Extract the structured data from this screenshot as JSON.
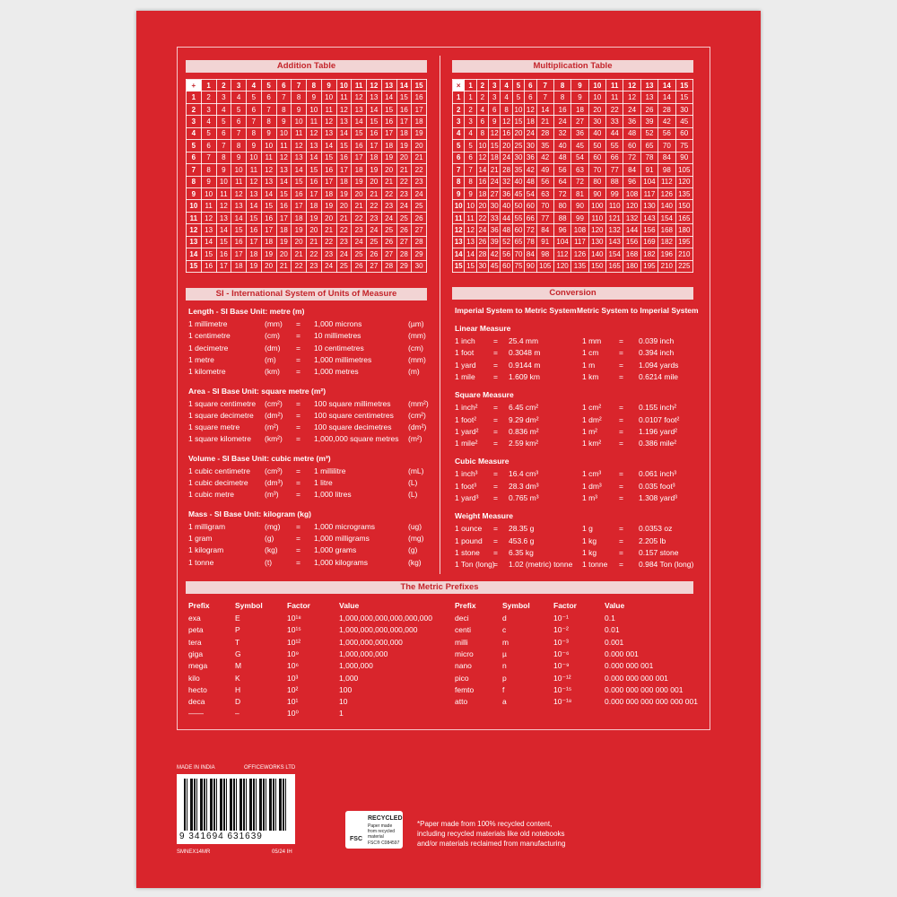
{
  "addition_table": {
    "title": "Addition Table",
    "rows": [
      [
        "+",
        1,
        2,
        3,
        4,
        5,
        6,
        7,
        8,
        9,
        10,
        11,
        12,
        13,
        14,
        15
      ],
      [
        1,
        2,
        3,
        4,
        5,
        6,
        7,
        8,
        9,
        10,
        11,
        12,
        13,
        14,
        15,
        16
      ],
      [
        2,
        3,
        4,
        5,
        6,
        7,
        8,
        9,
        10,
        11,
        12,
        13,
        14,
        15,
        16,
        17
      ],
      [
        3,
        4,
        5,
        6,
        7,
        8,
        9,
        10,
        11,
        12,
        13,
        14,
        15,
        16,
        17,
        18
      ],
      [
        4,
        5,
        6,
        7,
        8,
        9,
        10,
        11,
        12,
        13,
        14,
        15,
        16,
        17,
        18,
        19
      ],
      [
        5,
        6,
        7,
        8,
        9,
        10,
        11,
        12,
        13,
        14,
        15,
        16,
        17,
        18,
        19,
        20
      ],
      [
        6,
        7,
        8,
        9,
        10,
        11,
        12,
        13,
        14,
        15,
        16,
        17,
        18,
        19,
        20,
        21
      ],
      [
        7,
        8,
        9,
        10,
        11,
        12,
        13,
        14,
        15,
        16,
        17,
        18,
        19,
        20,
        21,
        22
      ],
      [
        8,
        9,
        10,
        11,
        12,
        13,
        14,
        15,
        16,
        17,
        18,
        19,
        20,
        21,
        22,
        23
      ],
      [
        9,
        10,
        11,
        12,
        13,
        14,
        15,
        16,
        17,
        18,
        19,
        20,
        21,
        22,
        23,
        24
      ],
      [
        10,
        11,
        12,
        13,
        14,
        15,
        16,
        17,
        18,
        19,
        20,
        21,
        22,
        23,
        24,
        25
      ],
      [
        11,
        12,
        13,
        14,
        15,
        16,
        17,
        18,
        19,
        20,
        21,
        22,
        23,
        24,
        25,
        26
      ],
      [
        12,
        13,
        14,
        15,
        16,
        17,
        18,
        19,
        20,
        21,
        22,
        23,
        24,
        25,
        26,
        27
      ],
      [
        13,
        14,
        15,
        16,
        17,
        18,
        19,
        20,
        21,
        22,
        23,
        24,
        25,
        26,
        27,
        28
      ],
      [
        14,
        15,
        16,
        17,
        18,
        19,
        20,
        21,
        22,
        23,
        24,
        25,
        26,
        27,
        28,
        29
      ],
      [
        15,
        16,
        17,
        18,
        19,
        20,
        21,
        22,
        23,
        24,
        25,
        26,
        27,
        28,
        29,
        30
      ]
    ]
  },
  "multiplication_table": {
    "title": "Multiplication Table",
    "rows": [
      [
        "×",
        1,
        2,
        3,
        4,
        5,
        6,
        7,
        8,
        9,
        10,
        11,
        12,
        13,
        14,
        15
      ],
      [
        1,
        1,
        2,
        3,
        4,
        5,
        6,
        7,
        8,
        9,
        10,
        11,
        12,
        13,
        14,
        15
      ],
      [
        2,
        2,
        4,
        6,
        8,
        10,
        12,
        14,
        16,
        18,
        20,
        22,
        24,
        26,
        28,
        30
      ],
      [
        3,
        3,
        6,
        9,
        12,
        15,
        18,
        21,
        24,
        27,
        30,
        33,
        36,
        39,
        42,
        45
      ],
      [
        4,
        4,
        8,
        12,
        16,
        20,
        24,
        28,
        32,
        36,
        40,
        44,
        48,
        52,
        56,
        60
      ],
      [
        5,
        5,
        10,
        15,
        20,
        25,
        30,
        35,
        40,
        45,
        50,
        55,
        60,
        65,
        70,
        75
      ],
      [
        6,
        6,
        12,
        18,
        24,
        30,
        36,
        42,
        48,
        54,
        60,
        66,
        72,
        78,
        84,
        90
      ],
      [
        7,
        7,
        14,
        21,
        28,
        35,
        42,
        49,
        56,
        63,
        70,
        77,
        84,
        91,
        98,
        105
      ],
      [
        8,
        8,
        16,
        24,
        32,
        40,
        48,
        56,
        64,
        72,
        80,
        88,
        96,
        104,
        112,
        120
      ],
      [
        9,
        9,
        18,
        27,
        36,
        45,
        54,
        63,
        72,
        81,
        90,
        99,
        108,
        117,
        126,
        135
      ],
      [
        10,
        10,
        20,
        30,
        40,
        50,
        60,
        70,
        80,
        90,
        100,
        110,
        120,
        130,
        140,
        150
      ],
      [
        11,
        11,
        22,
        33,
        44,
        55,
        66,
        77,
        88,
        99,
        110,
        121,
        132,
        143,
        154,
        165
      ],
      [
        12,
        12,
        24,
        36,
        48,
        60,
        72,
        84,
        96,
        108,
        120,
        132,
        144,
        156,
        168,
        180
      ],
      [
        13,
        13,
        26,
        39,
        52,
        65,
        78,
        91,
        104,
        117,
        130,
        143,
        156,
        169,
        182,
        195
      ],
      [
        14,
        14,
        28,
        42,
        56,
        70,
        84,
        98,
        112,
        126,
        140,
        154,
        168,
        182,
        196,
        210
      ],
      [
        15,
        15,
        30,
        45,
        60,
        75,
        90,
        105,
        120,
        135,
        150,
        165,
        180,
        195,
        210,
        225
      ]
    ]
  },
  "si": {
    "title": "SI - International System of Units of Measure",
    "equals": "=",
    "groups": [
      {
        "heading": "Length - SI Base Unit: metre (m)",
        "rows": [
          [
            "1 millimetre",
            "(mm)",
            "1,000 microns",
            "(µm)"
          ],
          [
            "1 centimetre",
            "(cm)",
            "10 millimetres",
            "(mm)"
          ],
          [
            "1 decimetre",
            "(dm)",
            "10 centimetres",
            "(cm)"
          ],
          [
            "1 metre",
            "(m)",
            "1,000 millimetres",
            "(mm)"
          ],
          [
            "1 kilometre",
            "(km)",
            "1,000 metres",
            "(m)"
          ]
        ]
      },
      {
        "heading": "Area - SI Base Unit: square metre (m²)",
        "rows": [
          [
            "1 square centimetre",
            "(cm²)",
            "100 square millimetres",
            "(mm²)"
          ],
          [
            "1 square decimetre",
            "(dm²)",
            "100 square centimetres",
            "(cm²)"
          ],
          [
            "1 square metre",
            "(m²)",
            "100 square decimetres",
            "(dm²)"
          ],
          [
            "1 square kilometre",
            "(km²)",
            "1,000,000 square metres",
            "(m²)"
          ]
        ]
      },
      {
        "heading": "Volume - SI Base Unit: cubic metre (m³)",
        "rows": [
          [
            "1 cubic centimetre",
            "(cm³)",
            "1 millilitre",
            "(mL)"
          ],
          [
            "1 cubic decimetre",
            "(dm³)",
            "1 litre",
            "(L)"
          ],
          [
            "1 cubic metre",
            "(m³)",
            "1,000 litres",
            "(L)"
          ]
        ]
      },
      {
        "heading": "Mass - SI Base Unit: kilogram (kg)",
        "rows": [
          [
            "1 milligram",
            "(mg)",
            "1,000 micrograms",
            "(ug)"
          ],
          [
            "1 gram",
            "(g)",
            "1,000 milligrams",
            "(mg)"
          ],
          [
            "1 kilogram",
            "(kg)",
            "1,000 grams",
            "(g)"
          ],
          [
            "1 tonne",
            "(t)",
            "1,000 kilograms",
            "(kg)"
          ]
        ]
      }
    ]
  },
  "conversion": {
    "title": "Conversion",
    "col_headings": [
      "Imperial System to Metric System",
      "Metric System to Imperial System"
    ],
    "equals": "=",
    "groups": [
      {
        "heading": "Linear Measure",
        "rows": [
          [
            "1 inch",
            "25.4 mm",
            "1 mm",
            "0.039 inch"
          ],
          [
            "1 foot",
            "0.3048 m",
            "1 cm",
            "0.394 inch"
          ],
          [
            "1 yard",
            "0.9144 m",
            "1 m",
            "1.094 yards"
          ],
          [
            "1 mile",
            "1.609 km",
            "1 km",
            "0.6214 mile"
          ]
        ]
      },
      {
        "heading": "Square Measure",
        "rows": [
          [
            "1 inch²",
            "6.45 cm²",
            "1 cm²",
            "0.155 inch²"
          ],
          [
            "1 foot²",
            "9.29 dm²",
            "1 dm²",
            "0.0107 foot²"
          ],
          [
            "1 yard²",
            "0.836 m²",
            "1 m²",
            "1.196 yard²"
          ],
          [
            "1 mile²",
            "2.59 km²",
            "1 km²",
            "0.386 mile²"
          ]
        ]
      },
      {
        "heading": "Cubic Measure",
        "rows": [
          [
            "1 inch³",
            "16.4 cm³",
            "1 cm³",
            "0.061 inch³"
          ],
          [
            "1 foot³",
            "28.3 dm³",
            "1 dm³",
            "0.035 foot³"
          ],
          [
            "1 yard³",
            "0.765 m³",
            "1 m³",
            "1.308 yard³"
          ]
        ]
      },
      {
        "heading": "Weight Measure",
        "rows": [
          [
            "1 ounce",
            "28.35 g",
            "1 g",
            "0.0353 oz"
          ],
          [
            "1 pound",
            "453.6 g",
            "1 kg",
            "2.205 lb"
          ],
          [
            "1 stone",
            "6.35 kg",
            "1 kg",
            "0.157 stone"
          ],
          [
            "1 Ton (long)",
            "1.02 (metric) tonne",
            "1 tonne",
            "0.984 Ton (long)"
          ]
        ]
      }
    ]
  },
  "metric_prefixes": {
    "title": "The Metric Prefixes",
    "headers": [
      "Prefix",
      "Symbol",
      "Factor",
      "Value"
    ],
    "left": [
      [
        "exa",
        "E",
        "10¹⁸",
        "1,000,000,000,000,000,000"
      ],
      [
        "peta",
        "P",
        "10¹⁵",
        "1,000,000,000,000,000"
      ],
      [
        "tera",
        "T",
        "10¹²",
        "1,000,000,000,000"
      ],
      [
        "giga",
        "G",
        "10⁹",
        "1,000,000,000"
      ],
      [
        "mega",
        "M",
        "10⁶",
        "1,000,000"
      ],
      [
        "kilo",
        "K",
        "10³",
        "1,000"
      ],
      [
        "hecto",
        "H",
        "10²",
        "100"
      ],
      [
        "deca",
        "D",
        "10¹",
        "10"
      ],
      [
        "——",
        "–",
        "10⁰",
        "1"
      ]
    ],
    "right": [
      [
        "deci",
        "d",
        "10⁻¹",
        "0.1"
      ],
      [
        "centi",
        "c",
        "10⁻²",
        "0.01"
      ],
      [
        "milli",
        "m",
        "10⁻³",
        "0.001"
      ],
      [
        "micro",
        "µ",
        "10⁻⁶",
        "0.000 001"
      ],
      [
        "nano",
        "n",
        "10⁻⁹",
        "0.000 000 001"
      ],
      [
        "pico",
        "p",
        "10⁻¹²",
        "0.000 000 000 001"
      ],
      [
        "femto",
        "f",
        "10⁻¹⁵",
        "0.000 000 000 000 001"
      ],
      [
        "atto",
        "a",
        "10⁻¹⁸",
        "0.000 000 000 000 000 001"
      ]
    ]
  },
  "footer": {
    "made_in": "MADE IN INDIA",
    "company": "OFFICEWORKS LTD",
    "barcode_number": "9 341694 631639",
    "product_code": "SMNEX14MR",
    "date_code": "05/24 IH",
    "fsc_logo": "FSC",
    "fsc_label": "RECYCLED",
    "fsc_text": "Paper made from recycled material",
    "fsc_code": "FSC® C084597",
    "note": [
      "*Paper made from 100% recycled content,",
      "including recycled materials like old notebooks",
      "and/or materials reclaimed from manufacturing"
    ]
  }
}
